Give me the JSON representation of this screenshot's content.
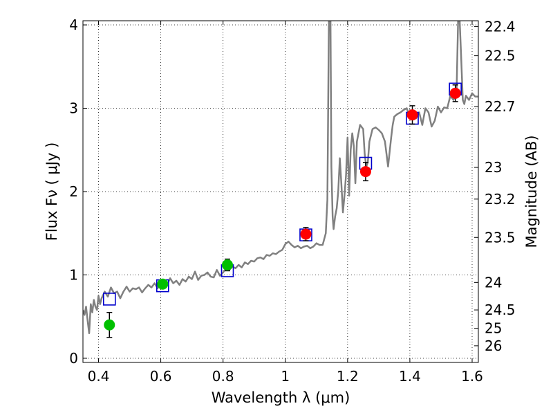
{
  "chart_data": {
    "type": "scatter",
    "xlabel": "Wavelength  λ (μm)",
    "ylabel": "Flux  Fν  ( μJy )",
    "y2label": "Magnitude (AB)",
    "xlim": [
      0.35,
      1.62
    ],
    "ylim": [
      -0.05,
      4.05
    ],
    "grid": true,
    "x_ticks": [
      0.4,
      0.6,
      0.8,
      1.0,
      1.2,
      1.4,
      1.6
    ],
    "x_tick_labels": [
      "0.4",
      "0.6",
      "0.8",
      "1",
      "1.2",
      "1.4",
      "1.6"
    ],
    "y_ticks": [
      0,
      1,
      2,
      3,
      4
    ],
    "y_tick_labels": [
      "0",
      "1",
      "2",
      "3",
      "4"
    ],
    "mag_ticks": [
      {
        "label": "22.4",
        "flux": 3.98
      },
      {
        "label": "22.5",
        "flux": 3.63
      },
      {
        "label": "22.7",
        "flux": 3.02
      },
      {
        "label": "23",
        "flux": 2.29
      },
      {
        "label": "23.2",
        "flux": 1.91
      },
      {
        "label": "23.5",
        "flux": 1.45
      },
      {
        "label": "24",
        "flux": 0.91
      },
      {
        "label": "24.5",
        "flux": 0.58
      },
      {
        "label": "25",
        "flux": 0.36
      },
      {
        "label": "26",
        "flux": 0.15
      }
    ],
    "colors": {
      "model": "#808080",
      "optical": "#00c000",
      "nir": "#ff0000",
      "model_band": "#0000cc"
    },
    "series": [
      {
        "marker": "circle",
        "color": "#00c000",
        "points": [
          {
            "x": 0.435,
            "y": 0.4,
            "err": 0.15
          },
          {
            "x": 0.606,
            "y": 0.89,
            "err": 0.05
          },
          {
            "x": 0.814,
            "y": 1.12,
            "err": 0.07
          }
        ]
      },
      {
        "marker": "circle",
        "color": "#ff0000",
        "points": [
          {
            "x": 1.066,
            "y": 1.49,
            "err": 0.08
          },
          {
            "x": 1.258,
            "y": 2.24,
            "err": 0.11
          },
          {
            "x": 1.408,
            "y": 2.92,
            "err": 0.11
          },
          {
            "x": 1.546,
            "y": 3.18,
            "err": 0.1
          }
        ]
      },
      {
        "marker": "open-square",
        "color": "#0000cc",
        "points": [
          {
            "x": 0.435,
            "y": 0.71
          },
          {
            "x": 0.606,
            "y": 0.87
          },
          {
            "x": 0.814,
            "y": 1.05
          },
          {
            "x": 1.066,
            "y": 1.48
          },
          {
            "x": 1.258,
            "y": 2.34
          },
          {
            "x": 1.408,
            "y": 2.88
          },
          {
            "x": 1.546,
            "y": 3.23
          }
        ]
      },
      {
        "line": true,
        "color": "#808080",
        "x": [
          0.35,
          0.355,
          0.36,
          0.365,
          0.37,
          0.375,
          0.38,
          0.385,
          0.39,
          0.395,
          0.4,
          0.405,
          0.41,
          0.42,
          0.43,
          0.44,
          0.45,
          0.46,
          0.47,
          0.48,
          0.49,
          0.5,
          0.51,
          0.52,
          0.53,
          0.54,
          0.55,
          0.56,
          0.57,
          0.58,
          0.59,
          0.6,
          0.61,
          0.62,
          0.63,
          0.64,
          0.65,
          0.66,
          0.67,
          0.68,
          0.69,
          0.7,
          0.71,
          0.72,
          0.73,
          0.74,
          0.75,
          0.76,
          0.77,
          0.78,
          0.79,
          0.8,
          0.81,
          0.82,
          0.83,
          0.84,
          0.85,
          0.86,
          0.87,
          0.88,
          0.89,
          0.9,
          0.91,
          0.92,
          0.93,
          0.94,
          0.95,
          0.96,
          0.97,
          0.98,
          0.99,
          1.0,
          1.01,
          1.02,
          1.03,
          1.04,
          1.05,
          1.06,
          1.07,
          1.08,
          1.09,
          1.1,
          1.11,
          1.12,
          1.13,
          1.135,
          1.14,
          1.145,
          1.148,
          1.152,
          1.155,
          1.16,
          1.165,
          1.17,
          1.175,
          1.18,
          1.185,
          1.19,
          1.195,
          1.2,
          1.205,
          1.21,
          1.215,
          1.22,
          1.225,
          1.23,
          1.24,
          1.25,
          1.255,
          1.26,
          1.265,
          1.27,
          1.28,
          1.29,
          1.3,
          1.31,
          1.32,
          1.33,
          1.34,
          1.345,
          1.35,
          1.36,
          1.37,
          1.38,
          1.39,
          1.4,
          1.41,
          1.42,
          1.43,
          1.44,
          1.45,
          1.46,
          1.47,
          1.48,
          1.49,
          1.5,
          1.51,
          1.52,
          1.53,
          1.54,
          1.55,
          1.555,
          1.56,
          1.565,
          1.57,
          1.575,
          1.58,
          1.59,
          1.6,
          1.61,
          1.62
        ],
        "y": [
          0.58,
          0.52,
          0.62,
          0.45,
          0.3,
          0.65,
          0.55,
          0.7,
          0.62,
          0.58,
          0.75,
          0.65,
          0.72,
          0.8,
          0.74,
          0.85,
          0.78,
          0.8,
          0.72,
          0.8,
          0.86,
          0.8,
          0.84,
          0.83,
          0.85,
          0.79,
          0.84,
          0.88,
          0.85,
          0.9,
          0.84,
          0.94,
          0.92,
          0.88,
          0.96,
          0.9,
          0.93,
          0.88,
          0.95,
          0.92,
          0.98,
          0.95,
          1.04,
          0.94,
          0.99,
          1.0,
          1.03,
          0.98,
          0.97,
          1.06,
          0.99,
          1.03,
          1.08,
          1.06,
          1.1,
          1.08,
          1.12,
          1.09,
          1.15,
          1.13,
          1.17,
          1.16,
          1.2,
          1.21,
          1.19,
          1.24,
          1.23,
          1.26,
          1.25,
          1.28,
          1.3,
          1.37,
          1.4,
          1.36,
          1.33,
          1.35,
          1.32,
          1.34,
          1.35,
          1.32,
          1.34,
          1.38,
          1.36,
          1.36,
          1.5,
          1.9,
          4.05,
          4.05,
          2.3,
          1.7,
          1.55,
          1.7,
          1.8,
          2.0,
          2.4,
          2.1,
          1.75,
          1.95,
          2.2,
          2.65,
          1.95,
          2.5,
          2.7,
          2.55,
          2.1,
          2.6,
          2.8,
          2.75,
          2.45,
          2.3,
          2.35,
          2.6,
          2.75,
          2.77,
          2.74,
          2.7,
          2.6,
          2.3,
          2.65,
          2.8,
          2.9,
          2.93,
          2.95,
          2.98,
          3.0,
          2.9,
          2.97,
          2.88,
          2.95,
          2.8,
          3.0,
          2.95,
          2.78,
          2.85,
          3.02,
          2.95,
          3.01,
          3.0,
          3.15,
          3.1,
          3.2,
          4.05,
          4.05,
          3.6,
          3.1,
          3.05,
          3.15,
          3.1,
          3.18,
          3.14,
          3.14
        ]
      }
    ]
  }
}
